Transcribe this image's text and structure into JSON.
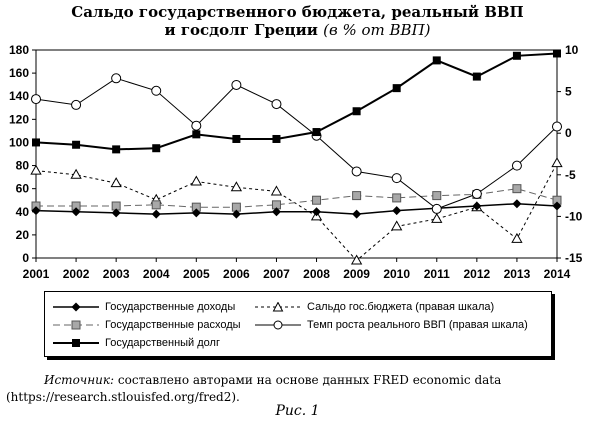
{
  "title_line1": "Сальдо государственного бюджета, реальный ВВП",
  "title_line2_plain": "и госдолг Греции ",
  "title_line2_italic": "(в % от ВВП)",
  "chart_data": {
    "type": "line",
    "x": [
      "2001",
      "2002",
      "2003",
      "2004",
      "2005",
      "2006",
      "2007",
      "2008",
      "2009",
      "2010",
      "2011",
      "2012",
      "2013",
      "2014"
    ],
    "y_left": {
      "ylim": [
        0,
        180
      ],
      "ticks": [
        "0",
        "20",
        "40",
        "60",
        "80",
        "100",
        "120",
        "140",
        "160",
        "180"
      ]
    },
    "y_right": {
      "ylim": [
        -15,
        10
      ],
      "ticks": [
        "-15",
        "-10",
        "-5",
        "0",
        "5",
        "10"
      ]
    },
    "grid": false,
    "legend_placement": "below",
    "series": [
      {
        "name": "Государственные доходы",
        "axis": "left",
        "marker": "diamond-filled",
        "dash": "solid",
        "values": [
          41,
          40,
          39,
          38,
          39,
          38,
          40,
          40,
          38,
          41,
          43,
          45,
          47,
          45
        ]
      },
      {
        "name": "Государственные расходы",
        "axis": "left",
        "marker": "square-gray",
        "dash": "long-dash",
        "values": [
          45,
          45,
          45,
          46,
          44,
          44,
          46,
          50,
          54,
          52,
          54,
          55,
          60,
          50
        ]
      },
      {
        "name": "Государственный долг",
        "axis": "left",
        "marker": "square-filled",
        "dash": "solid",
        "values": [
          100,
          98,
          94,
          95,
          107,
          103,
          103,
          109,
          127,
          147,
          171,
          157,
          175,
          177
        ]
      },
      {
        "name": "Сальдо гос.бюджета (правая шкала)",
        "axis": "right",
        "marker": "triangle-open",
        "dash": "short-dash",
        "values": [
          -4.5,
          -5,
          -6,
          -8,
          -5.8,
          -6.5,
          -7,
          -10,
          -15.3,
          -11.2,
          -10.3,
          -8.9,
          -12.7,
          -3.6
        ]
      },
      {
        "name": "Темп роста реального ВВП (правая шкала)",
        "axis": "right",
        "marker": "circle-open",
        "dash": "solid",
        "values": [
          4.1,
          3.4,
          6.6,
          5.1,
          0.9,
          5.8,
          3.5,
          -0.3,
          -4.6,
          -5.4,
          -9.1,
          -7.3,
          -3.9,
          0.8
        ]
      }
    ]
  },
  "legend": [
    "Государственные доходы",
    "Сальдо гос.бюджета (правая шкала)",
    "Государственные расходы",
    "Темп роста реального ВВП (правая шкала)",
    "Государственный долг"
  ],
  "source_label": "Источник:",
  "source_text": " составлено авторами на основе данных FRED economic data (https://research.stlouisfed.org/fred2).",
  "caption": "Рис. 1"
}
